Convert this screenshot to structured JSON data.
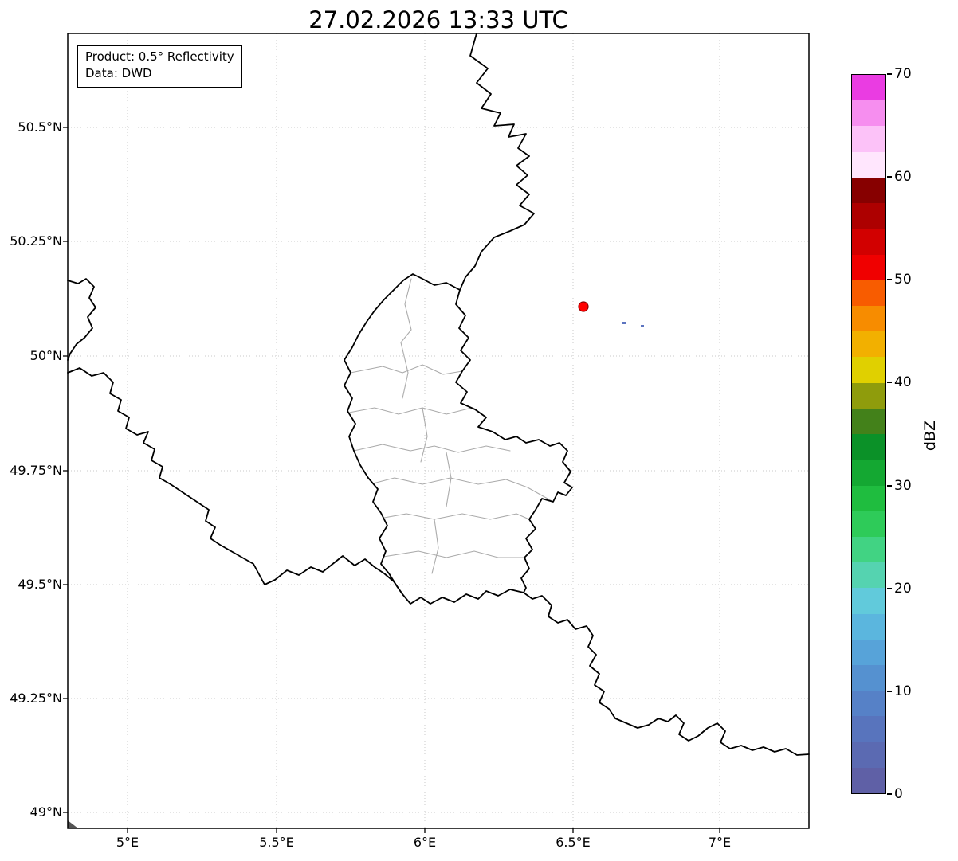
{
  "title": "27.02.2026 13:33 UTC",
  "annotation": {
    "line1": "Product: 0.5° Reflectivity",
    "line2": "Data: DWD"
  },
  "map": {
    "lat_ticks": [
      "50.5°N",
      "50.25°N",
      "50°N",
      "49.75°N",
      "49.5°N",
      "49.25°N",
      "49°N"
    ],
    "lon_ticks": [
      "5°E",
      "5.5°E",
      "6°E",
      "6.5°E",
      "7°E"
    ],
    "marker_color": "#ff0000",
    "echo_color": "#5c74c0",
    "border_color": "#000000",
    "district_color": "#ababab"
  },
  "colorbar": {
    "label": "dBZ",
    "min": 0,
    "max": 70,
    "tick_values": [
      0,
      10,
      20,
      30,
      40,
      50,
      60,
      70
    ],
    "colors_bottom_to_top": [
      "#5f60a6",
      "#5b6ab2",
      "#5874bd",
      "#5681c7",
      "#5591d0",
      "#57a3d9",
      "#5bb6de",
      "#61cadb",
      "#55d3b0",
      "#41d383",
      "#2ecb59",
      "#1fbd3f",
      "#14a832",
      "#0b9128",
      "#43811a",
      "#8f9c0c",
      "#e0d000",
      "#f2b000",
      "#f78c00",
      "#f85c00",
      "#f00000",
      "#d20000",
      "#ad0000",
      "#870000",
      "#ffe6fd",
      "#fcc2f8",
      "#f68eef",
      "#ea3ce2"
    ]
  }
}
